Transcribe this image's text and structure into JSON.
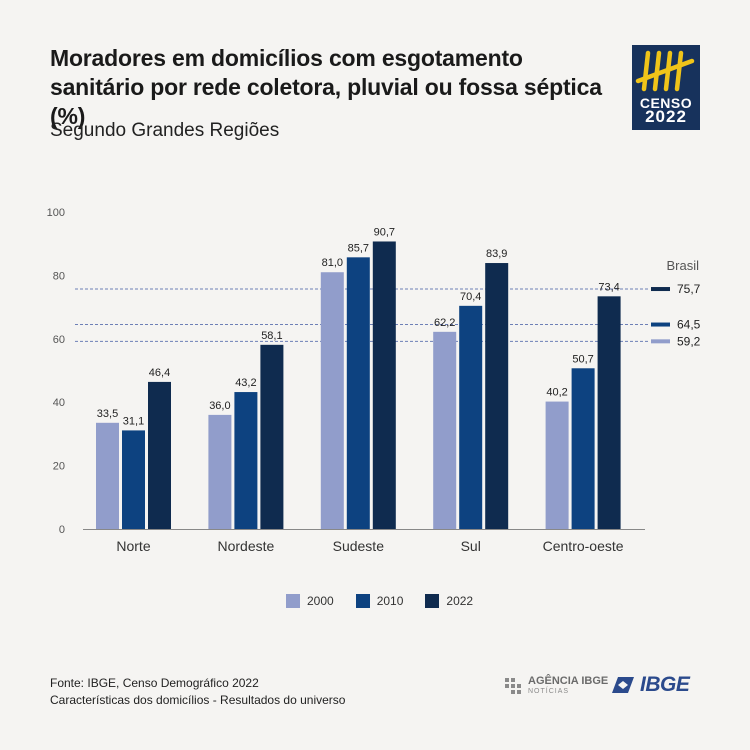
{
  "header": {
    "title": "Moradores em domicílios com esgotamento sanitário por rede coletora, pluvial ou fossa séptica (%)",
    "subtitle": "Segundo Grandes Regiões"
  },
  "logo": {
    "word1": "CENSO",
    "word2": "2022"
  },
  "colors": {
    "s2000": "#919dcb",
    "s2010": "#0d4280",
    "s2022": "#0f2b4f",
    "brand": "#17325c",
    "marks": "#f0c419"
  },
  "chart_data": {
    "type": "bar",
    "title": "Moradores em domicílios com esgotamento sanitário por rede coletora, pluvial ou fossa séptica (%)",
    "subtitle": "Segundo Grandes Regiões",
    "xlabel": "",
    "ylabel": "",
    "ylim": [
      0,
      100
    ],
    "yticks": [
      "0",
      "20",
      "40",
      "60",
      "80",
      "100"
    ],
    "categories": [
      "Norte",
      "Nordeste",
      "Sudeste",
      "Sul",
      "Centro-oeste"
    ],
    "series": [
      {
        "name": "2000",
        "values": [
          33.5,
          36.0,
          81.0,
          62.2,
          40.2
        ],
        "labels": [
          "33,5",
          "36,0",
          "81,0",
          "62,2",
          "40,2"
        ]
      },
      {
        "name": "2010",
        "values": [
          31.1,
          43.2,
          85.7,
          70.4,
          50.7
        ],
        "labels": [
          "31,1",
          "43,2",
          "85,7",
          "70,4",
          "50,7"
        ]
      },
      {
        "name": "2022",
        "values": [
          46.4,
          58.1,
          90.7,
          83.9,
          73.4
        ],
        "labels": [
          "46,4",
          "58,1",
          "90,7",
          "83,9",
          "73,4"
        ]
      }
    ],
    "reference": {
      "title": "Brasil",
      "lines": [
        {
          "series": "2022",
          "value": 75.7,
          "label": "75,7"
        },
        {
          "series": "2010",
          "value": 64.5,
          "label": "64,5"
        },
        {
          "series": "2000",
          "value": 59.2,
          "label": "59,2"
        }
      ]
    },
    "legend": [
      "2000",
      "2010",
      "2022"
    ]
  },
  "footer": {
    "source": "Fonte: IBGE, Censo Demográfico 2022",
    "note": "Características dos domicílios - Resultados do universo"
  },
  "agencia": {
    "line1": "AGÊNCIA IBGE",
    "line2": "NOTÍCIAS"
  },
  "ibge": {
    "name": "IBGE"
  }
}
